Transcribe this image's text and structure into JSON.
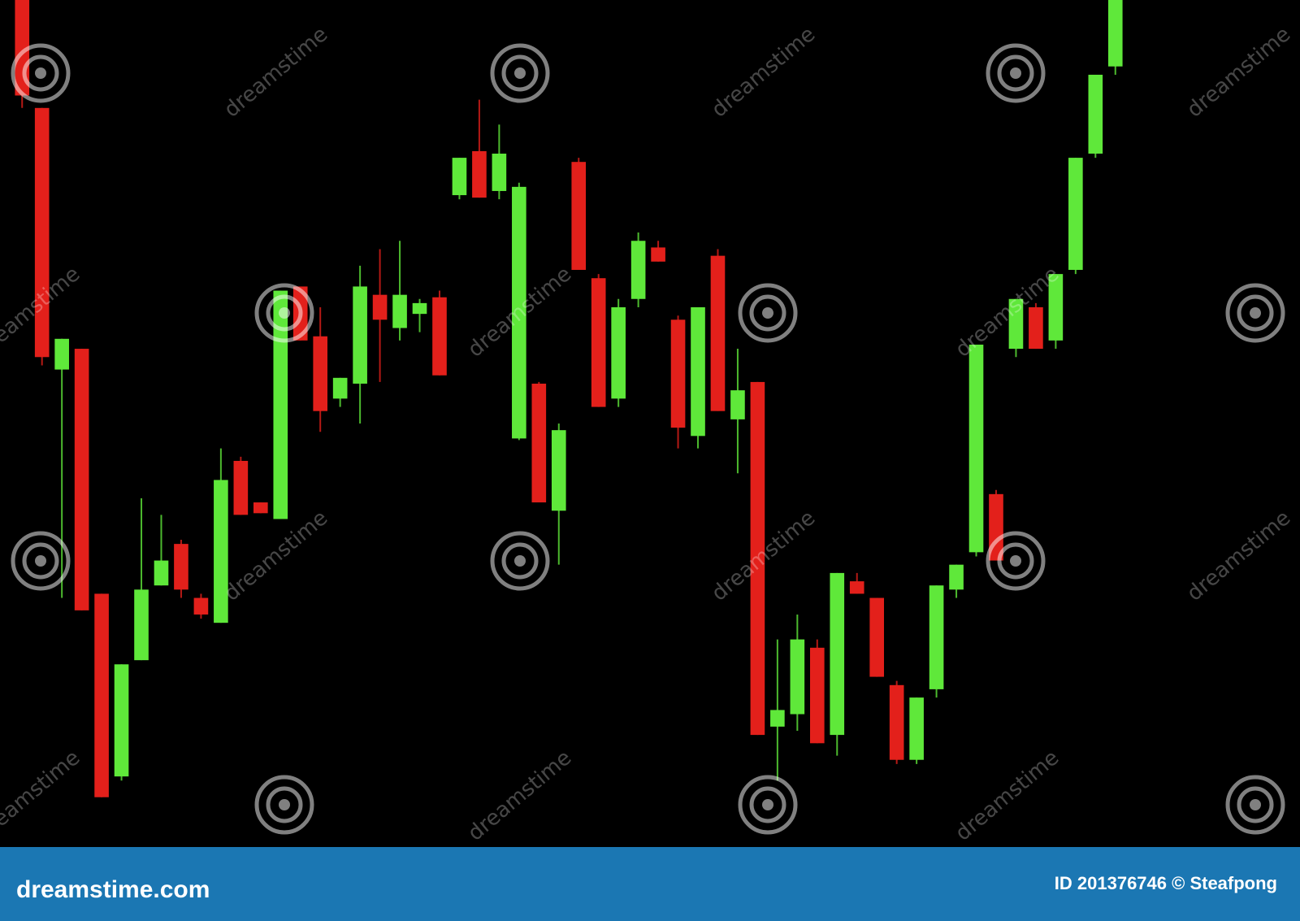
{
  "chart_data": {
    "type": "candlestick",
    "ylim": [
      0,
      102
    ],
    "up_color": "#5fe83a",
    "down_color": "#e3201b",
    "open": [
      102,
      89,
      57.5,
      60,
      30.5,
      8.5,
      22.5,
      31.5,
      36.5,
      30,
      27,
      46.5,
      41.5,
      39.5,
      67.5,
      61.5,
      54,
      55.8,
      66.5,
      62.5,
      64.2,
      66.2,
      78.5,
      83.8,
      79,
      49.2,
      55.8,
      40.5,
      82.5,
      68.5,
      54,
      66,
      72.2,
      63.5,
      49.5,
      71.2,
      51.5,
      56,
      14.5,
      16,
      24,
      13.5,
      32,
      30,
      19.5,
      10.5,
      19,
      31,
      35.5,
      42.5,
      60,
      65,
      61,
      69.5,
      83.5,
      94
    ],
    "high": [
      102,
      89,
      61.2,
      60,
      30.5,
      22,
      42,
      40,
      37,
      30.5,
      48,
      47,
      41.5,
      67,
      67.5,
      65,
      56.5,
      70,
      72,
      73,
      66,
      67,
      83,
      90,
      87,
      80,
      56,
      51,
      83,
      69,
      66,
      74,
      73,
      64,
      65,
      72,
      60,
      56,
      25,
      28,
      25,
      33,
      33,
      30,
      20,
      18,
      31.5,
      34,
      60.5,
      43,
      66,
      65.5,
      69,
      83,
      93,
      102
    ],
    "low": [
      89,
      58,
      30,
      28.5,
      6,
      8,
      22.5,
      31.5,
      30,
      27.5,
      27,
      40,
      40.2,
      39.5,
      61,
      50,
      53,
      51,
      56,
      61,
      62,
      56.8,
      78,
      78.2,
      78,
      49,
      41.5,
      34,
      69.5,
      53,
      53,
      65,
      70.5,
      48,
      48,
      52.5,
      45,
      13.5,
      8,
      14,
      12.5,
      11,
      30.5,
      20.5,
      10,
      10,
      18,
      30,
      35,
      34.5,
      59,
      60,
      60,
      69,
      83,
      93
    ],
    "close": [
      90.5,
      59,
      61.2,
      28.5,
      6,
      22,
      31,
      34.5,
      31,
      28,
      44.2,
      40,
      40.2,
      67,
      61,
      52.5,
      56.5,
      67.5,
      63.5,
      66.5,
      65.5,
      56.8,
      83,
      78.2,
      83.5,
      79.5,
      41.5,
      50.2,
      69.5,
      53,
      65,
      73,
      70.5,
      50.5,
      65,
      52.5,
      55,
      13.5,
      16.5,
      25,
      12.5,
      33,
      30.5,
      20.5,
      10.5,
      18,
      31.5,
      34,
      60.5,
      34.5,
      66,
      60,
      69,
      83,
      93,
      102
    ]
  },
  "watermark": "dreamstime",
  "footer": {
    "site": "dreamstime.com",
    "credit": "ID 201376746 © Steafpong"
  }
}
